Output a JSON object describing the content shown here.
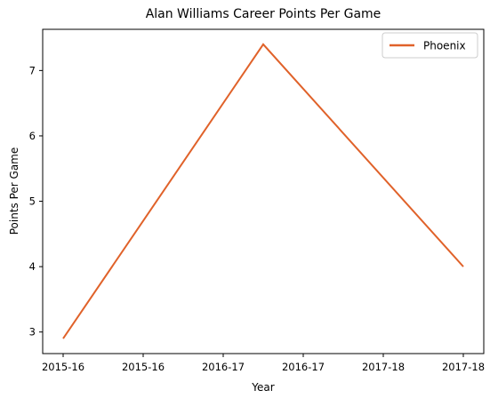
{
  "chart_data": {
    "type": "line",
    "title": "Alan Williams  Career Points Per Game",
    "xlabel": "Year",
    "ylabel": "Points Per Game",
    "x_tick_labels": [
      "2015-16",
      "2015-16",
      "2016-17",
      "2016-17",
      "2017-18",
      "2017-18"
    ],
    "y_ticks": [
      3,
      4,
      5,
      6,
      7
    ],
    "ylim": [
      2.67,
      7.63
    ],
    "grid": false,
    "legend_position": "top-right",
    "series": [
      {
        "name": "Phoenix",
        "color": "#e0622a",
        "points": [
          {
            "x": 0,
            "y": 2.9
          },
          {
            "x": 0.5,
            "y": 7.4
          },
          {
            "x": 1,
            "y": 4.0
          }
        ]
      }
    ]
  }
}
